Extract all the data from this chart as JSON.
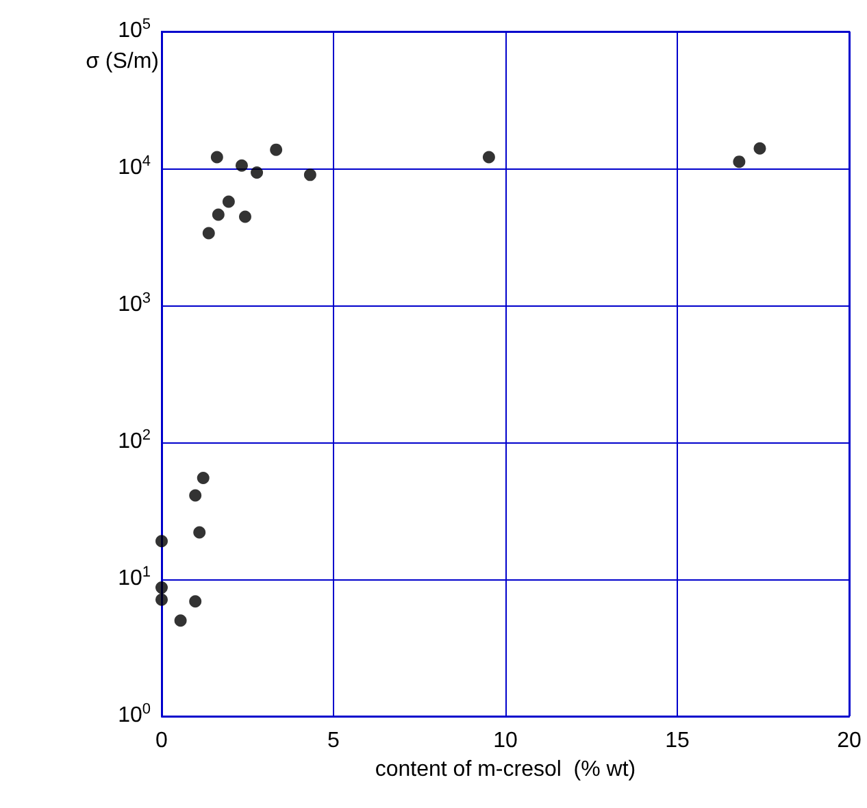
{
  "chart_data": {
    "type": "scatter",
    "xlabel": "content of m-cresol  (% wt)",
    "ylabel": "σ (S/m)",
    "x": [
      1.61,
      2.33,
      2.77,
      3.33,
      4.32,
      1.95,
      1.65,
      2.43,
      1.37,
      9.52,
      16.8,
      17.4,
      1.21,
      0.98,
      1.1,
      0,
      0,
      0,
      0.98,
      0.55
    ],
    "values": [
      12100,
      10500,
      9330,
      13700,
      8980,
      5720,
      4600,
      4440,
      3370,
      12100,
      11200,
      14000,
      55,
      41,
      22,
      19,
      8.7,
      7.1,
      6.9,
      5.0
    ],
    "color": "#000000",
    "marker": "circle",
    "log": "y",
    "grid": true,
    "xlim": [
      0,
      20
    ],
    "xticks": [
      0,
      5,
      10,
      15,
      20
    ],
    "ylim": [
      1,
      100000
    ],
    "yticks": [
      {
        "value": 1,
        "label": "10$^{0}$"
      },
      {
        "value": 10,
        "label": "10$^{1}$"
      },
      {
        "value": 100,
        "label": "10$^{2}$"
      },
      {
        "value": 1000,
        "label": "10$^{3}$"
      },
      {
        "value": 10000,
        "label": "10$^{4}$"
      },
      {
        "value": 100000,
        "label": "10$^{5}$"
      }
    ]
  }
}
